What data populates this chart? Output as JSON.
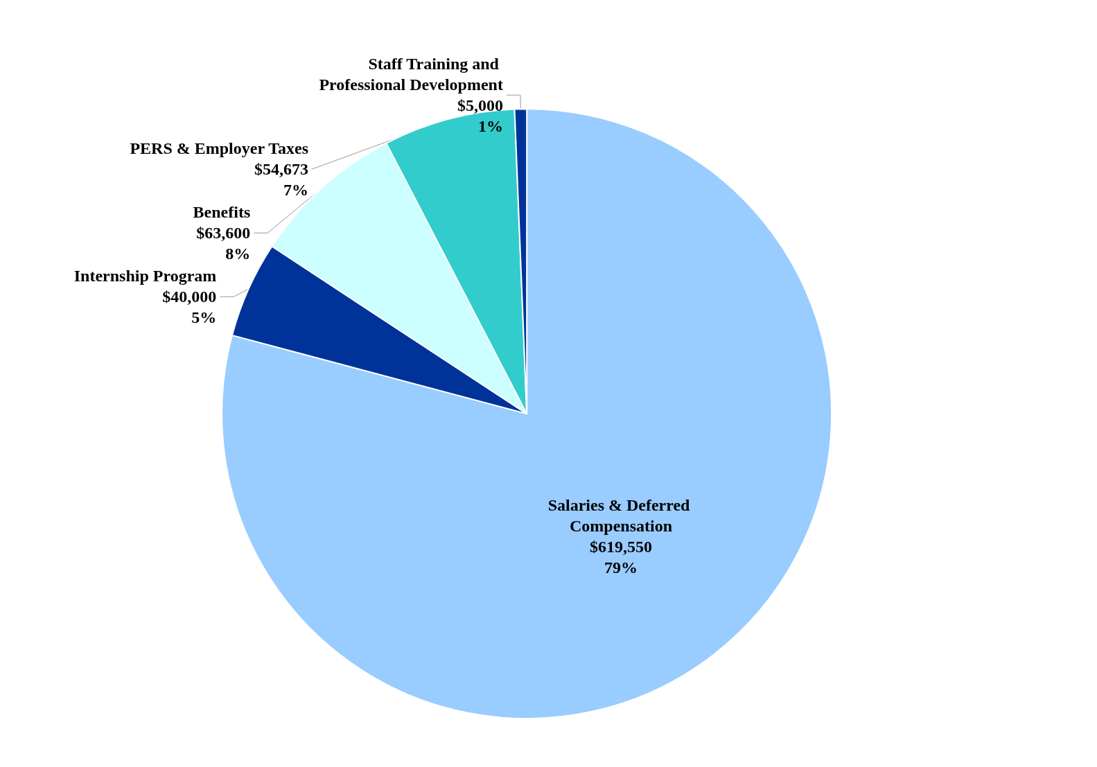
{
  "chart_data": {
    "type": "pie",
    "categories": [
      "Salaries & Deferred Compensation",
      "Internship Program",
      "Benefits",
      "PERS & Employer Taxes",
      "Staff Training and Professional Development"
    ],
    "values": [
      619550,
      40000,
      63600,
      54673,
      5000
    ],
    "colors": [
      "#99ccff",
      "#003399",
      "#ccffff",
      "#33cccc",
      "#003399"
    ],
    "value_labels": [
      "$619,550\n79%",
      "$40,000\n5%",
      "$63,600\n8%",
      "$54,673\n7%",
      "$5,000\n1%"
    ]
  }
}
